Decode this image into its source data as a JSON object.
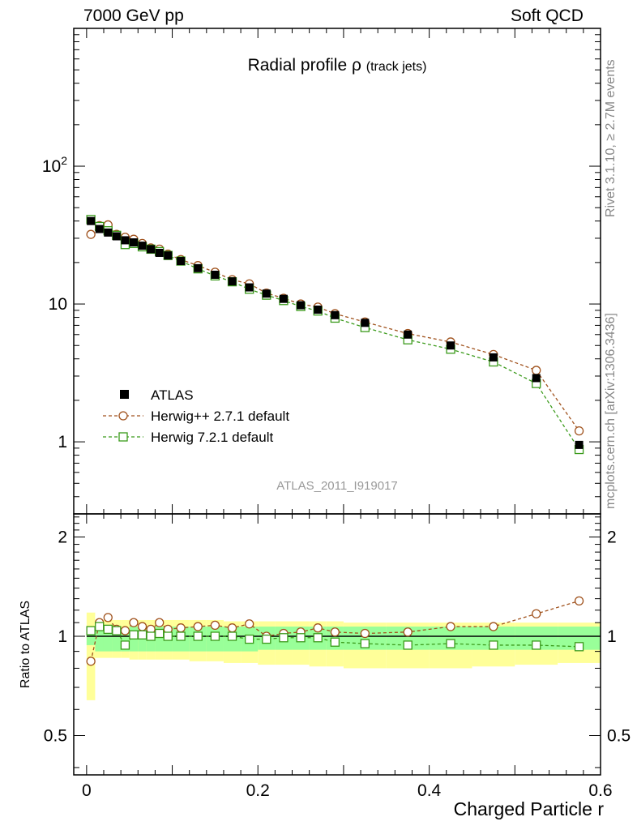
{
  "header": {
    "energy_label": "7000 GeV pp",
    "category_label": "Soft QCD",
    "side_rivet": "Rivet 3.1.10, ≥ 2.7M events",
    "side_source": "mcplots.cern.ch [arXiv:1306.3436]"
  },
  "chart_data": [
    {
      "type": "line",
      "title": "Radial profile",
      "title_symbol": "ρ",
      "title_suffix": "(track jets)",
      "watermark": "ATLAS_2011_I919017",
      "xlim": [
        -0.015,
        0.6
      ],
      "ylim": [
        0.3,
        1000
      ],
      "yscale": "log",
      "yticks": [
        {
          "v": 1,
          "label": "1"
        },
        {
          "v": 10,
          "label": "10"
        },
        {
          "v": 100,
          "label": "10",
          "sup": "2"
        }
      ],
      "legend_position": "middle-left",
      "x": [
        0.005,
        0.015,
        0.025,
        0.035,
        0.045,
        0.055,
        0.065,
        0.075,
        0.085,
        0.095,
        0.11,
        0.13,
        0.15,
        0.17,
        0.19,
        0.21,
        0.23,
        0.25,
        0.27,
        0.29,
        0.325,
        0.375,
        0.425,
        0.475,
        0.525,
        0.575
      ],
      "series": [
        {
          "name": "ATLAS",
          "style": "data",
          "color": "#000000",
          "values": [
            40,
            35,
            33,
            31,
            29,
            28,
            26.5,
            25,
            23.5,
            22.5,
            20.5,
            18.2,
            16.3,
            14.6,
            13.2,
            11.9,
            10.9,
            9.8,
            9.1,
            8.3,
            7.3,
            6.0,
            5.0,
            4.1,
            2.9,
            0.95
          ]
        },
        {
          "name": "Herwig++ 2.7.1 default",
          "style": "circle",
          "color": "#a0521d",
          "values": [
            32,
            37,
            37.5,
            32,
            30.5,
            29.5,
            27.5,
            25.5,
            25,
            23,
            21,
            19,
            17,
            15,
            14,
            12,
            11,
            10,
            9.5,
            8.5,
            7.4,
            6.1,
            5.3,
            4.3,
            3.3,
            1.2
          ]
        },
        {
          "name": "Herwig 7.2.1 default",
          "style": "square",
          "color": "#3a9a1a",
          "values": [
            41,
            36.5,
            34,
            31.5,
            27,
            27.5,
            26,
            25,
            24,
            22.5,
            20.5,
            18,
            16,
            14.5,
            12.8,
            11.6,
            10.6,
            9.6,
            8.9,
            7.9,
            6.75,
            5.5,
            4.7,
            3.8,
            2.65,
            0.88
          ]
        }
      ]
    },
    {
      "type": "line",
      "ylabel": "Ratio to ATLAS",
      "xlabel": "Charged Particle r",
      "xlim": [
        -0.015,
        0.6
      ],
      "ylim": [
        0.38,
        2.35
      ],
      "yscale": "log",
      "yticks": [
        {
          "v": 0.5,
          "label": "0.5"
        },
        {
          "v": 1,
          "label": "1"
        },
        {
          "v": 2,
          "label": "2"
        }
      ],
      "xticks": [
        {
          "v": 0,
          "label": "0"
        },
        {
          "v": 0.2,
          "label": "0.2"
        },
        {
          "v": 0.4,
          "label": "0.4"
        },
        {
          "v": 0.6,
          "label": "0.6"
        }
      ],
      "x": [
        0.005,
        0.015,
        0.025,
        0.035,
        0.045,
        0.055,
        0.065,
        0.075,
        0.085,
        0.095,
        0.11,
        0.13,
        0.15,
        0.17,
        0.19,
        0.21,
        0.23,
        0.25,
        0.27,
        0.29,
        0.325,
        0.375,
        0.425,
        0.475,
        0.525,
        0.575
      ],
      "bins": [
        0,
        0.01,
        0.02,
        0.03,
        0.04,
        0.05,
        0.06,
        0.07,
        0.08,
        0.09,
        0.1,
        0.12,
        0.14,
        0.16,
        0.18,
        0.2,
        0.22,
        0.24,
        0.26,
        0.28,
        0.3,
        0.35,
        0.4,
        0.45,
        0.5,
        0.55,
        0.6
      ],
      "band_inner": [
        [
          0.94,
          1.06
        ],
        [
          0.9,
          1.06
        ],
        [
          0.9,
          1.06
        ],
        [
          0.9,
          1.06
        ],
        [
          0.9,
          1.06
        ],
        [
          0.9,
          1.07
        ],
        [
          0.9,
          1.07
        ],
        [
          0.9,
          1.07
        ],
        [
          0.9,
          1.07
        ],
        [
          0.9,
          1.07
        ],
        [
          0.9,
          1.07
        ],
        [
          0.9,
          1.07
        ],
        [
          0.9,
          1.07
        ],
        [
          0.9,
          1.07
        ],
        [
          0.9,
          1.07
        ],
        [
          0.91,
          1.07
        ],
        [
          0.91,
          1.07
        ],
        [
          0.91,
          1.07
        ],
        [
          0.91,
          1.07
        ],
        [
          0.91,
          1.07
        ],
        [
          0.91,
          1.07
        ],
        [
          0.91,
          1.07
        ],
        [
          0.91,
          1.07
        ],
        [
          0.91,
          1.07
        ],
        [
          0.91,
          1.07
        ],
        [
          0.91,
          1.07
        ]
      ],
      "band_outer": [
        [
          0.64,
          1.18
        ],
        [
          0.86,
          1.12
        ],
        [
          0.86,
          1.12
        ],
        [
          0.86,
          1.12
        ],
        [
          0.86,
          1.12
        ],
        [
          0.85,
          1.12
        ],
        [
          0.85,
          1.12
        ],
        [
          0.85,
          1.12
        ],
        [
          0.85,
          1.12
        ],
        [
          0.85,
          1.12
        ],
        [
          0.85,
          1.12
        ],
        [
          0.84,
          1.12
        ],
        [
          0.84,
          1.12
        ],
        [
          0.83,
          1.11
        ],
        [
          0.83,
          1.11
        ],
        [
          0.82,
          1.11
        ],
        [
          0.82,
          1.11
        ],
        [
          0.82,
          1.11
        ],
        [
          0.81,
          1.11
        ],
        [
          0.81,
          1.11
        ],
        [
          0.8,
          1.1
        ],
        [
          0.8,
          1.1
        ],
        [
          0.8,
          1.1
        ],
        [
          0.81,
          1.1
        ],
        [
          0.82,
          1.1
        ],
        [
          0.83,
          1.1
        ]
      ],
      "series": [
        {
          "name": "Herwig++ 2.7.1 default",
          "style": "circle",
          "color": "#a0521d",
          "values": [
            0.84,
            1.1,
            1.14,
            1.05,
            1.04,
            1.1,
            1.07,
            1.05,
            1.1,
            1.05,
            1.06,
            1.07,
            1.08,
            1.06,
            1.09,
            1.0,
            1.02,
            1.03,
            1.06,
            1.03,
            1.02,
            1.03,
            1.07,
            1.07,
            1.17,
            1.28
          ]
        },
        {
          "name": "Herwig 7.2.1 default",
          "style": "square",
          "color": "#3a9a1a",
          "values": [
            1.04,
            1.07,
            1.05,
            1.04,
            0.94,
            1.01,
            1.01,
            1.0,
            1.02,
            1.0,
            1.0,
            1.0,
            1.0,
            1.0,
            0.98,
            0.98,
            0.99,
            0.99,
            0.99,
            0.96,
            0.95,
            0.94,
            0.95,
            0.94,
            0.94,
            0.93
          ]
        }
      ]
    }
  ]
}
